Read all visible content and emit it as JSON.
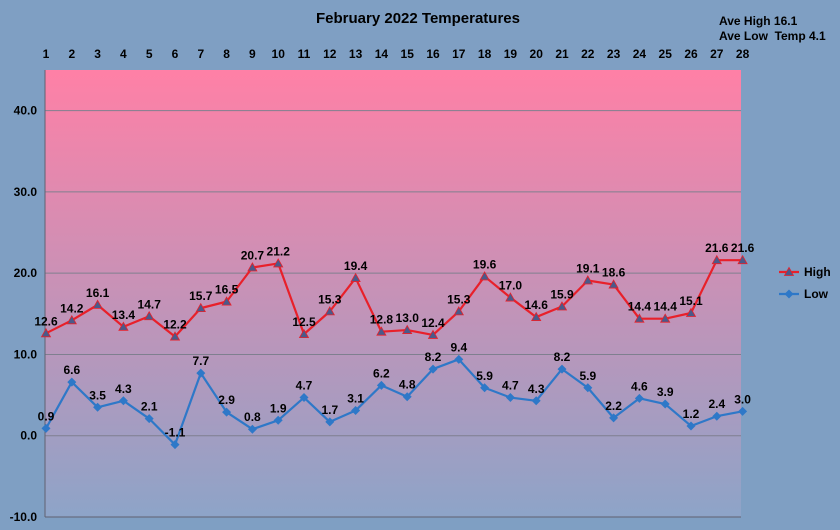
{
  "chart_data": {
    "type": "line",
    "title": "February 2022 Temperatures",
    "notes": [
      "Ave High 16.1",
      "Ave Low  Temp 4.1"
    ],
    "x": [
      1,
      2,
      3,
      4,
      5,
      6,
      7,
      8,
      9,
      10,
      11,
      12,
      13,
      14,
      15,
      16,
      17,
      18,
      19,
      20,
      21,
      22,
      23,
      24,
      25,
      26,
      27,
      28
    ],
    "x_tick_labels": [
      "1",
      "2",
      "3",
      "4",
      "5",
      "6",
      "7",
      "8",
      "9",
      "10",
      "11",
      "12",
      "13",
      "14",
      "15",
      "16",
      "17",
      "18",
      "19",
      "20",
      "21",
      "22",
      "23",
      "24",
      "25",
      "26",
      "27",
      "28"
    ],
    "y_tick_labels": [
      "40.0",
      "30.0",
      "20.0",
      "10.0",
      "0.0",
      "-10.0"
    ],
    "y_ticks": [
      40,
      30,
      20,
      10,
      0,
      -10
    ],
    "ylim": [
      -10,
      45
    ],
    "grid": true,
    "x_axis_position": "top",
    "legend_position": "right",
    "series": [
      {
        "name": "High",
        "color": "#e8202a",
        "marker": "triangle",
        "values": [
          12.6,
          14.2,
          16.1,
          13.4,
          14.7,
          12.2,
          15.7,
          16.5,
          20.7,
          21.2,
          12.5,
          15.3,
          19.4,
          12.8,
          13.0,
          12.4,
          15.3,
          19.6,
          17.0,
          14.6,
          15.9,
          19.1,
          18.6,
          14.4,
          14.4,
          15.1,
          21.6,
          21.6
        ],
        "labels": [
          "12.6",
          "14.2",
          "16.1",
          "13.4",
          "14.7",
          "12.2",
          "15.7",
          "16.5",
          "20.7",
          "21.2",
          "12.5",
          "15.3",
          "19.4",
          "12.8",
          "13.0",
          "12.4",
          "15.3",
          "19.6",
          "17.0",
          "14.6",
          "15.9",
          "19.1",
          "18.6",
          "14.4",
          "14.4",
          "15.1",
          "21.6",
          "21.6"
        ]
      },
      {
        "name": "Low",
        "color": "#2e78c8",
        "marker": "diamond",
        "values": [
          0.9,
          6.6,
          3.5,
          4.3,
          2.1,
          -1.1,
          7.7,
          2.9,
          0.8,
          1.9,
          4.7,
          1.7,
          3.1,
          6.2,
          4.8,
          8.2,
          9.4,
          5.9,
          4.7,
          4.3,
          8.2,
          5.9,
          2.2,
          4.6,
          3.9,
          1.2,
          2.4,
          3.0
        ],
        "labels": [
          "0.9",
          "6.6",
          "3.5",
          "4.3",
          "2.1",
          "-1.1",
          "7.7",
          "2.9",
          "0.8",
          "1.9",
          "4.7",
          "1.7",
          "3.1",
          "6.2",
          "4.8",
          "8.2",
          "9.4",
          "5.9",
          "4.7",
          "4.3",
          "8.2",
          "5.9",
          "2.2",
          "4.6",
          "3.9",
          "1.2",
          "2.4",
          "3.0"
        ]
      }
    ],
    "plot_background": [
      "#ff80a6",
      "#8da4c8"
    ],
    "page_background": "#7f9fc3"
  }
}
